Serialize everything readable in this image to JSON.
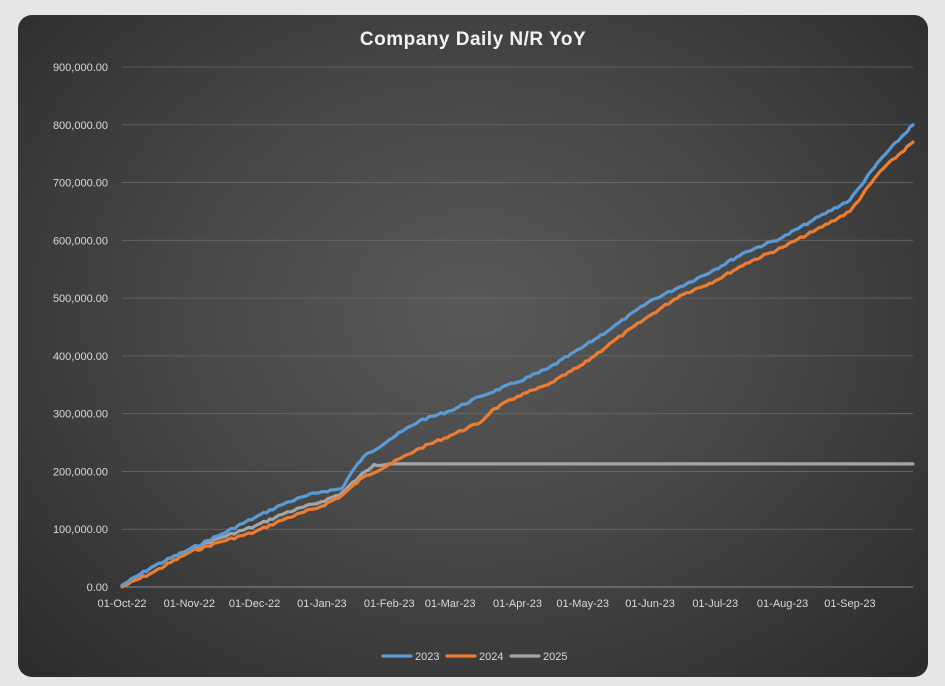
{
  "chart_data": {
    "type": "line",
    "title": "Company Daily N/R YoY",
    "xlabel": "",
    "ylabel": "",
    "ylim": [
      0,
      900000
    ],
    "yticks": [
      "0.00",
      "100,000.00",
      "200,000.00",
      "300,000.00",
      "400,000.00",
      "500,000.00",
      "600,000.00",
      "700,000.00",
      "800,000.00",
      "900,000.00"
    ],
    "xticks": [
      "01-Oct-22",
      "01-Nov-22",
      "01-Dec-22",
      "01-Jan-23",
      "01-Feb-23",
      "01-Mar-23",
      "01-Apr-23",
      "01-May-23",
      "01-Jun-23",
      "01-Jul-23",
      "01-Aug-23",
      "01-Sep-23"
    ],
    "x_start": "01-Oct-22",
    "x_end": "30-Sep-23",
    "grid": true,
    "legend_position": "bottom",
    "series": [
      {
        "name": "2023",
        "color": "#5b9bd5",
        "points": [
          [
            "01-Oct-22",
            3000
          ],
          [
            "15-Oct-22",
            35000
          ],
          [
            "01-Nov-22",
            65000
          ],
          [
            "15-Nov-22",
            90000
          ],
          [
            "01-Dec-22",
            120000
          ],
          [
            "15-Dec-22",
            145000
          ],
          [
            "25-Dec-22",
            158000
          ],
          [
            "01-Jan-23",
            165000
          ],
          [
            "10-Jan-23",
            170000
          ],
          [
            "15-Jan-23",
            200000
          ],
          [
            "20-Jan-23",
            225000
          ],
          [
            "01-Feb-23",
            255000
          ],
          [
            "15-Feb-23",
            288000
          ],
          [
            "01-Mar-23",
            305000
          ],
          [
            "15-Mar-23",
            330000
          ],
          [
            "01-Apr-23",
            355000
          ],
          [
            "15-Apr-23",
            378000
          ],
          [
            "01-May-23",
            415000
          ],
          [
            "15-May-23",
            450000
          ],
          [
            "01-Jun-23",
            495000
          ],
          [
            "15-Jun-23",
            520000
          ],
          [
            "01-Jul-23",
            550000
          ],
          [
            "15-Jul-23",
            580000
          ],
          [
            "01-Aug-23",
            605000
          ],
          [
            "15-Aug-23",
            635000
          ],
          [
            "01-Sep-23",
            670000
          ],
          [
            "15-Sep-23",
            740000
          ],
          [
            "30-Sep-23",
            800000
          ]
        ]
      },
      {
        "name": "2024",
        "color": "#ed7d31",
        "points": [
          [
            "01-Oct-22",
            0
          ],
          [
            "15-Oct-22",
            25000
          ],
          [
            "01-Nov-22",
            60000
          ],
          [
            "15-Nov-22",
            78000
          ],
          [
            "01-Dec-22",
            95000
          ],
          [
            "15-Dec-22",
            118000
          ],
          [
            "01-Jan-23",
            140000
          ],
          [
            "10-Jan-23",
            158000
          ],
          [
            "20-Jan-23",
            190000
          ],
          [
            "01-Feb-23",
            212000
          ],
          [
            "15-Feb-23",
            240000
          ],
          [
            "01-Mar-23",
            262000
          ],
          [
            "15-Mar-23",
            285000
          ],
          [
            "20-Mar-23",
            305000
          ],
          [
            "01-Apr-23",
            330000
          ],
          [
            "15-Apr-23",
            350000
          ],
          [
            "01-May-23",
            385000
          ],
          [
            "15-May-23",
            425000
          ],
          [
            "01-Jun-23",
            470000
          ],
          [
            "15-Jun-23",
            505000
          ],
          [
            "01-Jul-23",
            530000
          ],
          [
            "15-Jul-23",
            560000
          ],
          [
            "01-Aug-23",
            588000
          ],
          [
            "15-Aug-23",
            615000
          ],
          [
            "01-Sep-23",
            650000
          ],
          [
            "15-Sep-23",
            720000
          ],
          [
            "30-Sep-23",
            770000
          ]
        ]
      },
      {
        "name": "2025",
        "color": "#a5a5a5",
        "points": [
          [
            "01-Oct-22",
            2000
          ],
          [
            "15-Oct-22",
            35000
          ],
          [
            "01-Nov-22",
            65000
          ],
          [
            "15-Nov-22",
            85000
          ],
          [
            "01-Dec-22",
            105000
          ],
          [
            "15-Dec-22",
            128000
          ],
          [
            "01-Jan-23",
            148000
          ],
          [
            "10-Jan-23",
            162000
          ],
          [
            "18-Jan-23",
            190000
          ],
          [
            "25-Jan-23",
            212000
          ],
          [
            "01-Feb-23",
            213000
          ],
          [
            "30-Sep-23",
            213000
          ]
        ]
      }
    ]
  }
}
